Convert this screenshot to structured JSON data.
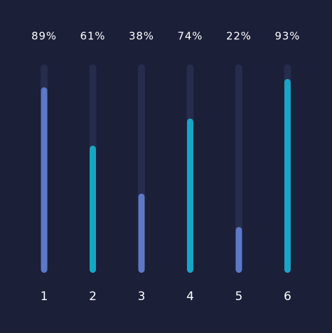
{
  "chart_data": {
    "type": "bar",
    "categories": [
      "1",
      "2",
      "3",
      "4",
      "5",
      "6"
    ],
    "values": [
      89,
      61,
      38,
      74,
      22,
      93
    ],
    "value_labels": [
      "89%",
      "61%",
      "38%",
      "74%",
      "22%",
      "93%"
    ],
    "colors": [
      "#5d78c6",
      "#17a7c4",
      "#5d78c6",
      "#17a7c4",
      "#5d78c6",
      "#17a7c4"
    ],
    "track_color": "#262c4b",
    "ylim": [
      0,
      100
    ]
  }
}
